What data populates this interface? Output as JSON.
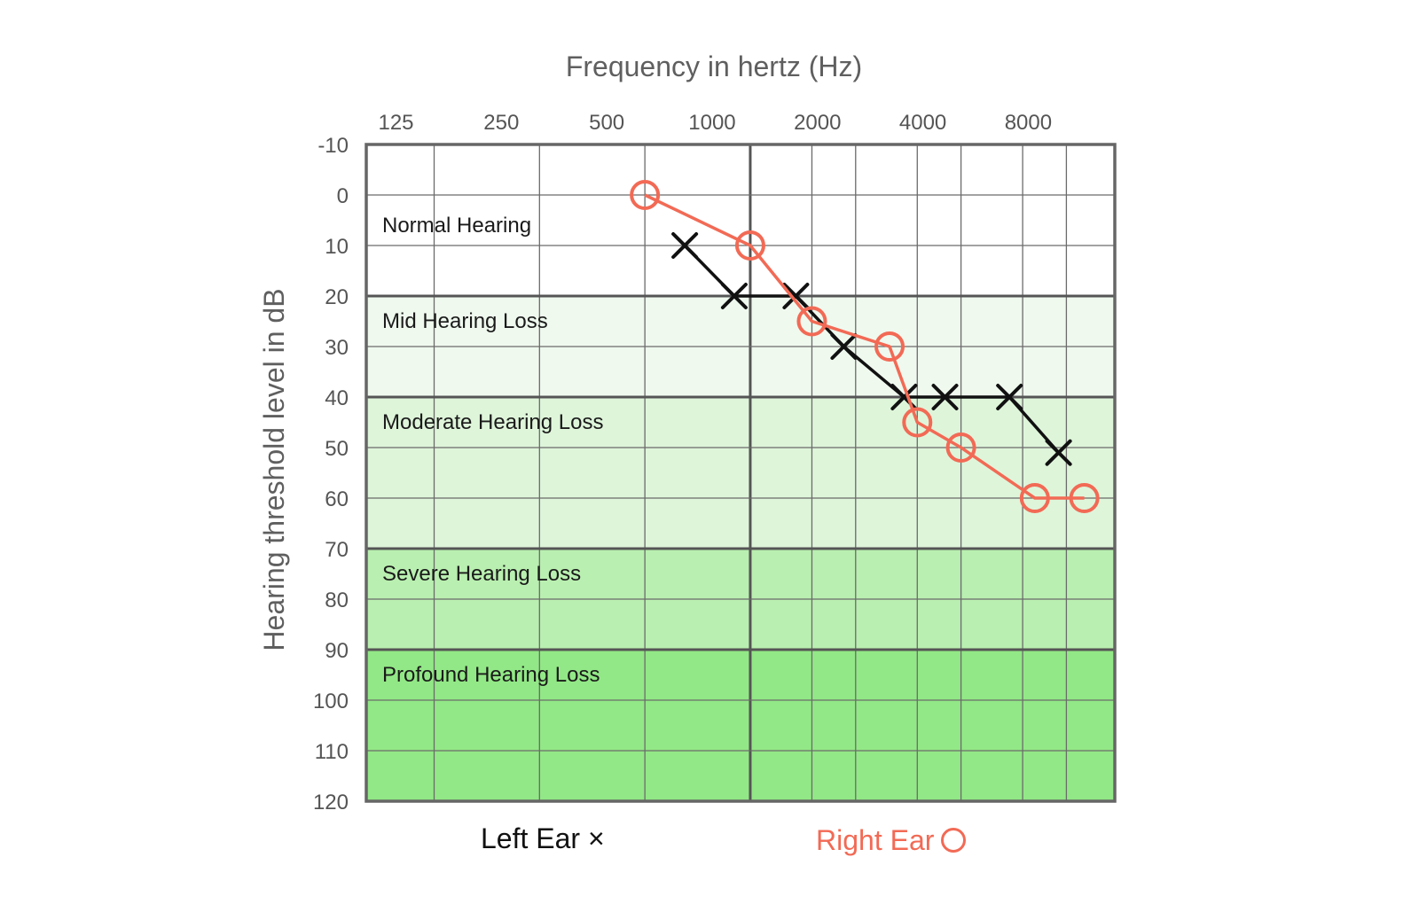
{
  "chart_data": {
    "type": "line",
    "title": "Frequency in hertz (Hz)",
    "ylabel": "Hearing threshold level in dB",
    "xlabel": "",
    "x_tick_labels": [
      "125",
      "250",
      "500",
      "1000",
      "2000",
      "4000",
      "8000"
    ],
    "x_tick_values": [
      125,
      250,
      500,
      1000,
      2000,
      4000,
      8000
    ],
    "x_grid_values": [
      125,
      250,
      500,
      1000,
      1500,
      2000,
      3000,
      4000,
      6000,
      8000
    ],
    "xlim": [
      80,
      11000
    ],
    "ylim": [
      -10,
      120
    ],
    "y_ticks": [
      -10,
      0,
      10,
      20,
      30,
      40,
      50,
      60,
      70,
      80,
      90,
      100,
      110,
      120
    ],
    "grid": true,
    "regions": [
      {
        "label": "Normal Hearing",
        "from": -10,
        "to": 20,
        "color": "#ffffff"
      },
      {
        "label": "Mid Hearing Loss",
        "from": 20,
        "to": 40,
        "color": "#eff9ee"
      },
      {
        "label": "Moderate Hearing Loss",
        "from": 40,
        "to": 70,
        "color": "#def5da"
      },
      {
        "label": "Severe Hearing Loss",
        "from": 70,
        "to": 90,
        "color": "#b9efb0"
      },
      {
        "label": "Profound Hearing Loss",
        "from": 90,
        "to": 120,
        "color": "#92e886"
      }
    ],
    "series": [
      {
        "name": "Left Ear",
        "marker": "x",
        "color": "#111111",
        "x": [
          650,
          900,
          1350,
          1850,
          2750,
          3600,
          5500,
          7600
        ],
        "values": [
          10,
          20,
          20,
          30,
          40,
          40,
          40,
          51
        ]
      },
      {
        "name": "Right Ear",
        "marker": "o",
        "color": "#f26a55",
        "x": [
          500,
          1000,
          1500,
          2500,
          3000,
          4000,
          6500,
          9000
        ],
        "values": [
          0,
          10,
          25,
          30,
          45,
          50,
          60,
          60
        ]
      }
    ]
  },
  "legend": {
    "left_ear": "Left Ear ×",
    "right_ear": "Right Ear",
    "right_color": "#f26a55"
  }
}
